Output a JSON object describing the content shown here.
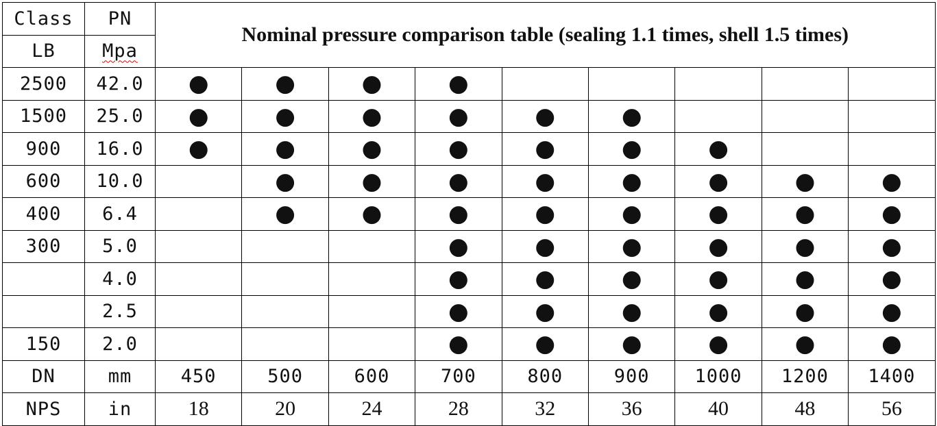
{
  "header": {
    "class": "Class",
    "pn": "PN",
    "lb": "LB",
    "mpa": "Mpa",
    "title": "Nominal pressure comparison table (sealing 1.1 times, shell 1.5 times)"
  },
  "rows": [
    {
      "class": "2500",
      "pn": "42.0",
      "cells": [
        "●",
        "●",
        "●",
        "●",
        null,
        null,
        null,
        null,
        null
      ]
    },
    {
      "class": "1500",
      "pn": "25.0",
      "cells": [
        "●",
        "●",
        "●",
        "●",
        "●",
        "●",
        null,
        null,
        null
      ]
    },
    {
      "class": "900",
      "pn": "16.0",
      "cells": [
        "●",
        "●",
        "●",
        "●",
        "●",
        "●",
        "●",
        null,
        null
      ]
    },
    {
      "class": "600",
      "pn": "10.0",
      "cells": [
        null,
        "●",
        "●",
        "●",
        "●",
        "●",
        "●",
        "●",
        "●"
      ]
    },
    {
      "class": "400",
      "pn": "6.4",
      "cells": [
        null,
        "●",
        "●",
        "●",
        "●",
        "●",
        "●",
        "●",
        "●"
      ]
    },
    {
      "class": "300",
      "pn": "5.0",
      "cells": [
        null,
        null,
        null,
        "●",
        "●",
        "●",
        "●",
        "●",
        "●"
      ]
    },
    {
      "class": null,
      "pn": "4.0",
      "cells": [
        null,
        null,
        null,
        "●",
        "●",
        "●",
        "●",
        "●",
        "●"
      ]
    },
    {
      "class": null,
      "pn": "2.5",
      "cells": [
        null,
        null,
        null,
        "●",
        "●",
        "●",
        "●",
        "●",
        "●"
      ]
    },
    {
      "class": "150",
      "pn": "2.0",
      "cells": [
        null,
        null,
        null,
        "●",
        "●",
        "●",
        "●",
        "●",
        "●"
      ]
    }
  ],
  "dn": {
    "label": "DN",
    "unit": "mm",
    "values": [
      "450",
      "500",
      "600",
      "700",
      "800",
      "900",
      "1000",
      "1200",
      "1400"
    ]
  },
  "nps": {
    "label": "NPS",
    "unit": "in",
    "values": [
      "18",
      "20",
      "24",
      "28",
      "32",
      "36",
      "40",
      "48",
      "56"
    ]
  }
}
